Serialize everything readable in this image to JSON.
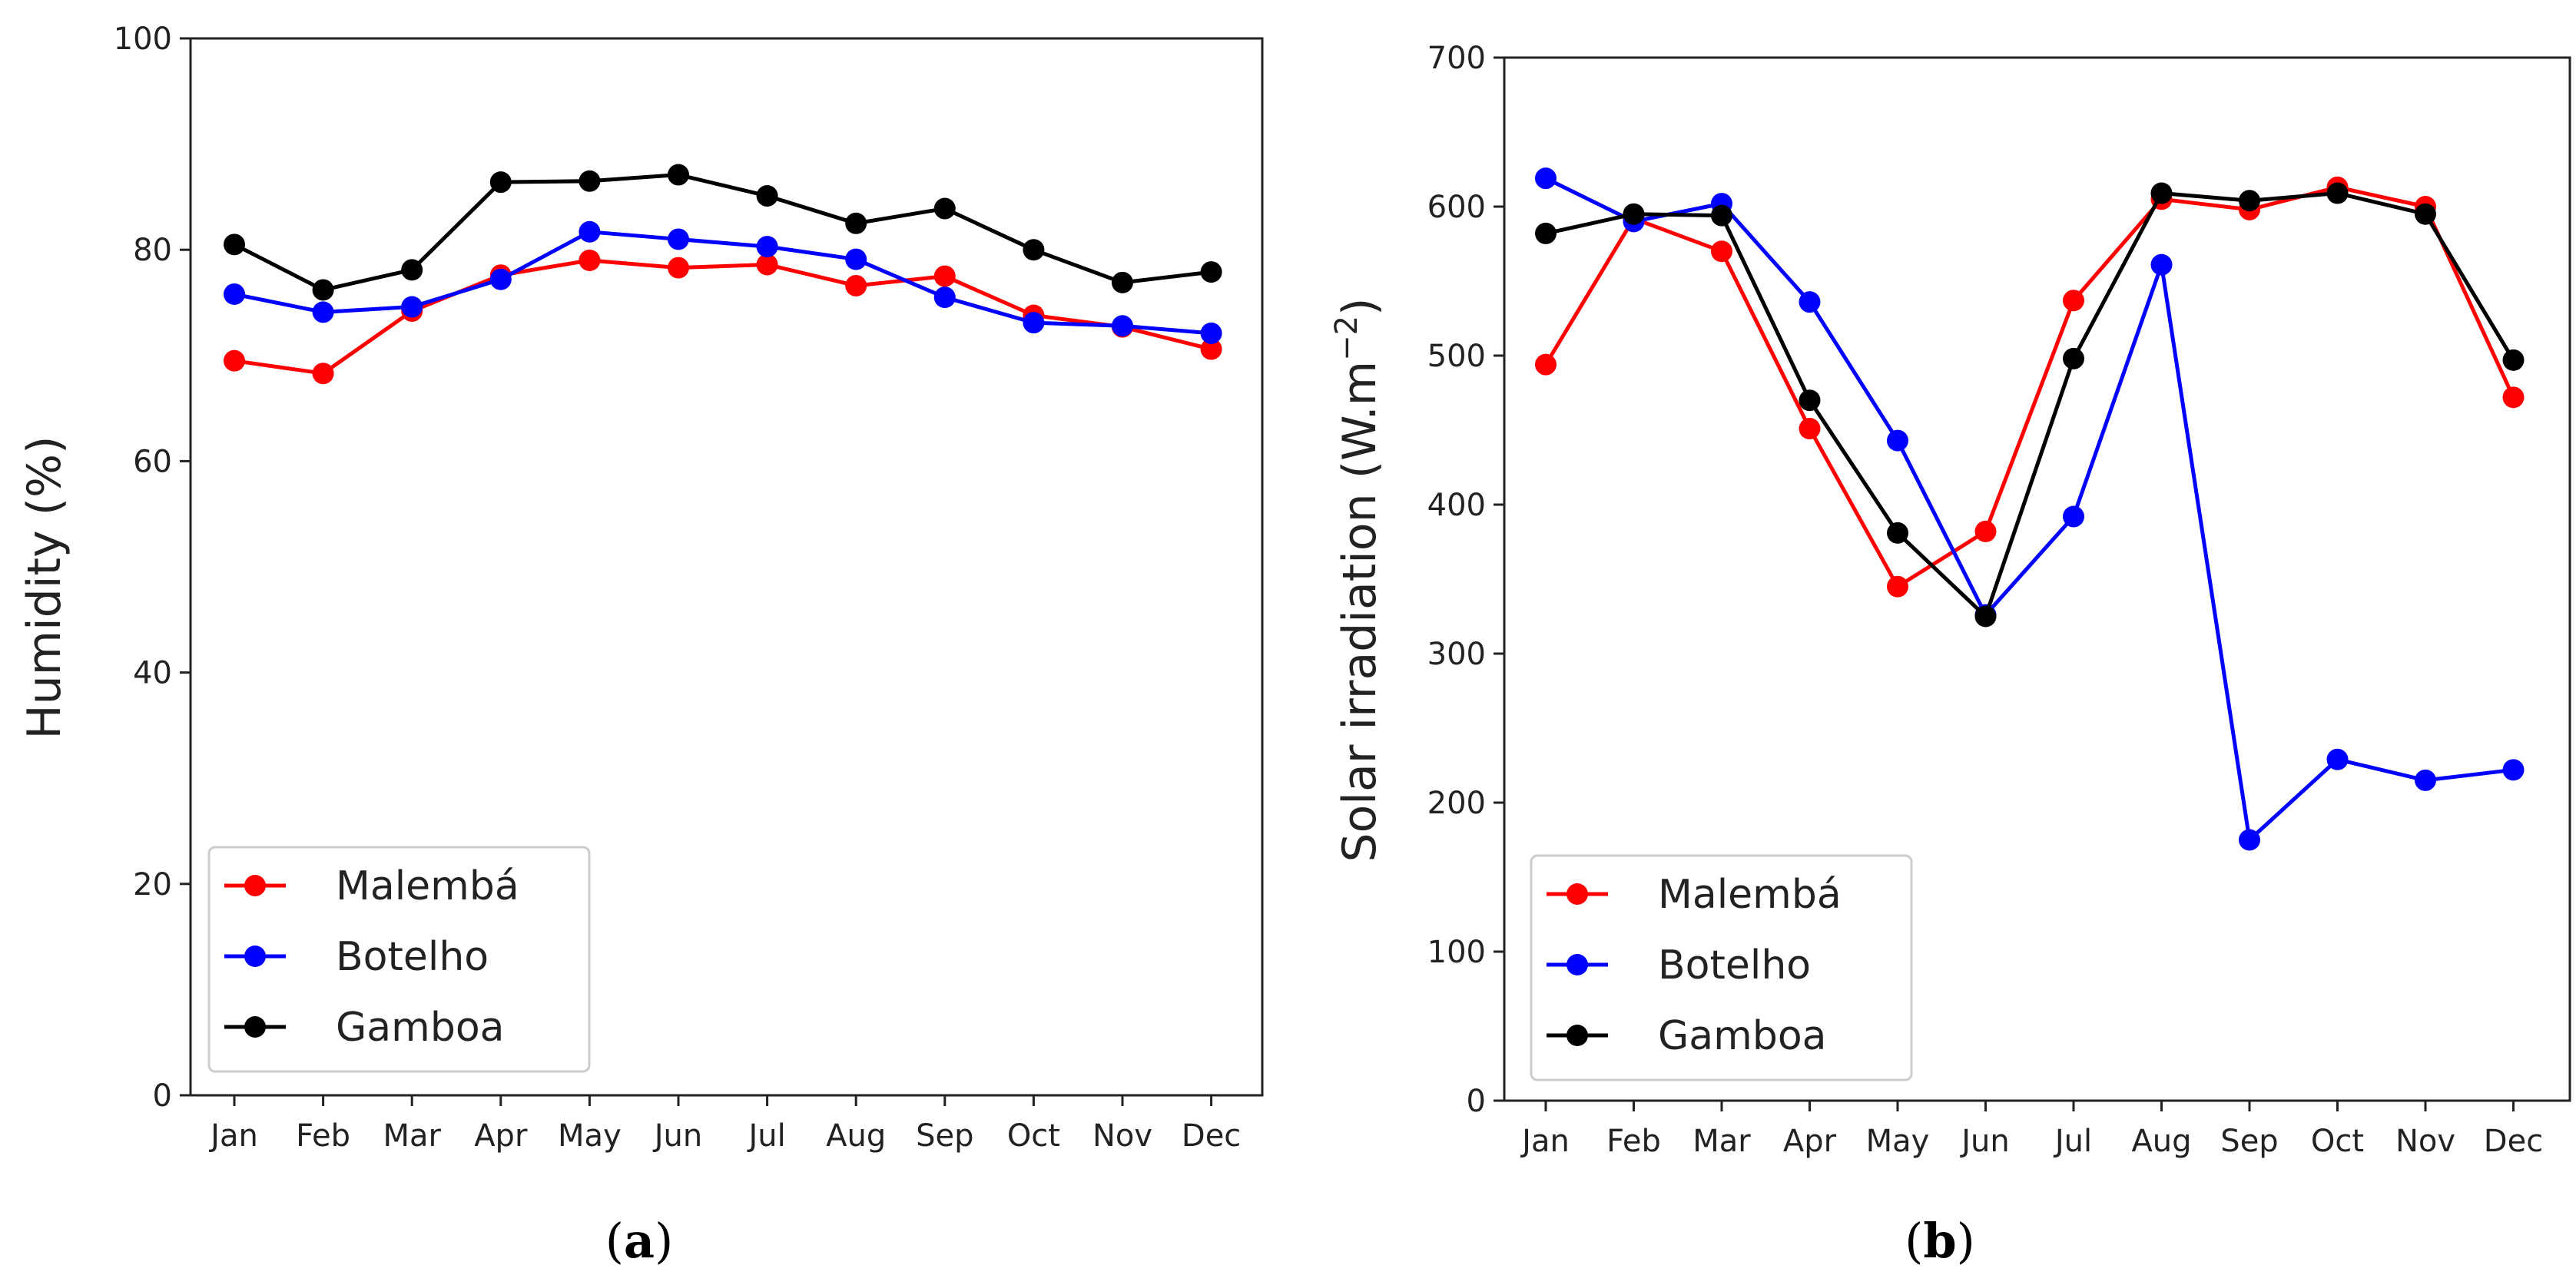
{
  "chart_data": [
    {
      "type": "line",
      "panel_label": "a",
      "title": "",
      "xlabel": "",
      "ylabel": "Humidity (%)",
      "categories": [
        "Jan",
        "Feb",
        "Mar",
        "Apr",
        "May",
        "Jun",
        "Jul",
        "Aug",
        "Sep",
        "Oct",
        "Nov",
        "Dec"
      ],
      "ylim": [
        0,
        100
      ],
      "yticks": [
        0,
        20,
        40,
        60,
        80,
        100
      ],
      "grid": false,
      "legend_position": "bottom-left",
      "series": [
        {
          "name": "Malembá",
          "color": "#ff0000",
          "values": [
            69.5,
            68.3,
            74.2,
            77.6,
            79.0,
            78.3,
            78.6,
            76.6,
            77.5,
            73.8,
            72.7,
            70.6
          ]
        },
        {
          "name": "Botelho",
          "color": "#0000ff",
          "values": [
            75.8,
            74.1,
            74.6,
            77.2,
            81.7,
            81.0,
            80.3,
            79.1,
            75.5,
            73.1,
            72.8,
            72.1
          ]
        },
        {
          "name": "Gamboa",
          "color": "#000000",
          "values": [
            80.5,
            76.2,
            78.1,
            86.4,
            86.5,
            87.1,
            85.1,
            82.5,
            83.9,
            80.0,
            76.9,
            77.9
          ]
        }
      ]
    },
    {
      "type": "line",
      "panel_label": "b",
      "title": "",
      "xlabel": "",
      "ylabel": "Solar irradiation (W.m",
      "ylabel_exponent": "−2",
      "ylabel_close": ")",
      "categories": [
        "Jan",
        "Feb",
        "Mar",
        "Apr",
        "May",
        "Jun",
        "Jul",
        "Aug",
        "Sep",
        "Oct",
        "Nov",
        "Dec"
      ],
      "ylim": [
        0,
        700
      ],
      "yticks": [
        0,
        100,
        200,
        300,
        400,
        500,
        600,
        700
      ],
      "grid": false,
      "legend_position": "bottom-left",
      "series": [
        {
          "name": "Malembá",
          "color": "#ff0000",
          "values": [
            494,
            592,
            570,
            451,
            345,
            382,
            537,
            605,
            598,
            613,
            600,
            472
          ]
        },
        {
          "name": "Botelho",
          "color": "#0000ff",
          "values": [
            619,
            590,
            602,
            536,
            443,
            326,
            392,
            561,
            175,
            229,
            215,
            222
          ]
        },
        {
          "name": "Gamboa",
          "color": "#000000",
          "values": [
            582,
            595,
            594,
            470,
            381,
            325,
            498,
            609,
            604,
            609,
            595,
            497
          ]
        }
      ]
    }
  ],
  "captions": [
    {
      "open": "(",
      "letter": "a",
      "close": ")"
    },
    {
      "open": "(",
      "letter": "b",
      "close": ")"
    }
  ]
}
